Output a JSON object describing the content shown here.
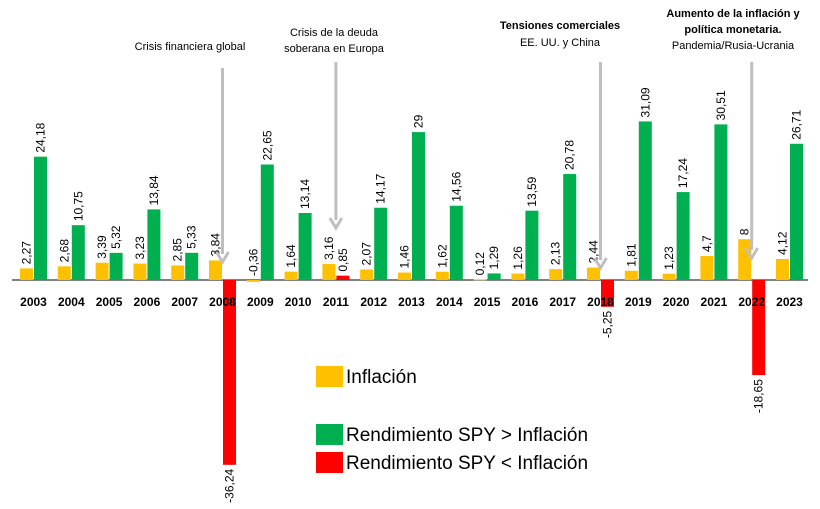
{
  "chart_data": {
    "type": "bar",
    "categories": [
      "2003",
      "2004",
      "2005",
      "2006",
      "2007",
      "2008",
      "2009",
      "2010",
      "2011",
      "2012",
      "2013",
      "2014",
      "2015",
      "2016",
      "2017",
      "2018",
      "2019",
      "2020",
      "2021",
      "2022",
      "2023"
    ],
    "series": [
      {
        "name": "Inflación",
        "color": "#FFC000",
        "values": [
          2.27,
          2.68,
          3.39,
          3.23,
          2.85,
          3.84,
          -0.36,
          1.64,
          3.16,
          2.07,
          1.46,
          1.62,
          0.12,
          1.26,
          2.13,
          2.44,
          1.81,
          1.23,
          4.7,
          8,
          4.12
        ],
        "labels": [
          "2,27",
          "2,68",
          "3,39",
          "3,23",
          "2,85",
          "3,84",
          "-0,36",
          "1,64",
          "3,16",
          "2,07",
          "1,46",
          "1,62",
          "0,12",
          "1,26",
          "2,13",
          "2,44",
          "1,81",
          "1,23",
          "4,7",
          "8",
          "4,12"
        ]
      },
      {
        "name": "Rendimiento SPY",
        "values": [
          24.18,
          10.75,
          5.32,
          13.84,
          5.33,
          -36.24,
          22.65,
          13.14,
          0.85,
          14.17,
          29,
          14.56,
          1.29,
          13.59,
          20.78,
          -5.25,
          31.09,
          17.24,
          30.51,
          -18.65,
          26.71
        ],
        "labels": [
          "24,18",
          "10,75",
          "5,32",
          "13,84",
          "5,33",
          "-36,24",
          "22,65",
          "13,14",
          "0,85",
          "14,17",
          "29",
          "14,56",
          "1,29",
          "13,59",
          "20,78",
          "-5,25",
          "31,09",
          "17,24",
          "30,51",
          "-18,65",
          "26,71"
        ]
      }
    ],
    "colors": {
      "above": "#00B050",
      "below": "#FF0000",
      "inflation": "#FFC000",
      "arrow": "#BFBFBF"
    },
    "legend": [
      {
        "key": "inflation",
        "label": "Inflación"
      },
      {
        "key": "above",
        "label": "Rendimiento SPY > Inflación"
      },
      {
        "key": "below",
        "label": "Rendimiento SPY < Inflación"
      }
    ],
    "annotations": [
      {
        "year": "2008",
        "lines": [
          "Crisis financiera global"
        ],
        "bold": [
          false
        ]
      },
      {
        "year": "2011",
        "lines": [
          "Crisis de la deuda",
          "soberana en Europa"
        ],
        "bold": [
          false,
          false
        ]
      },
      {
        "year": "2018",
        "lines": [
          "Tensiones comerciales",
          "EE. UU. y China"
        ],
        "bold": [
          true,
          false
        ]
      },
      {
        "year": "2022",
        "lines": [
          "Aumento de la inflación  y",
          "política monetaria.",
          "Pandemia/Rusia-Ucrania"
        ],
        "bold": [
          true,
          true,
          false
        ]
      }
    ]
  }
}
